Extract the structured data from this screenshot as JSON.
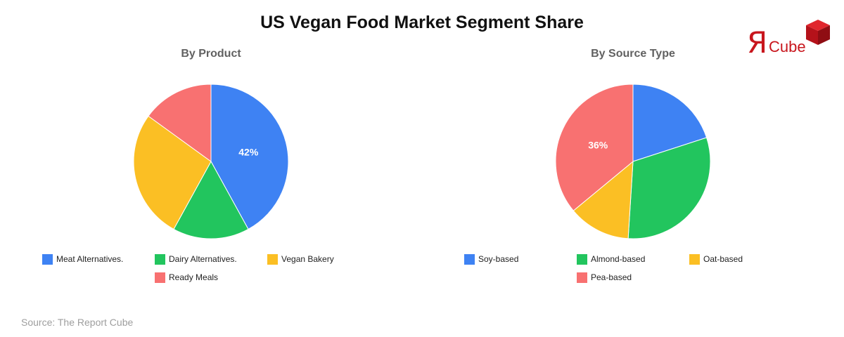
{
  "title": "US Vegan Food Market Segment Share",
  "source": "Source: The Report Cube",
  "logo": {
    "mark": "Я",
    "word": "Cube",
    "color": "#c8161d"
  },
  "chart_data": [
    {
      "type": "pie",
      "title": "By Product",
      "categories": [
        "Meat Alternatives.",
        "Dairy Alternatives.",
        "Vegan Bakery",
        "Ready Meals"
      ],
      "values": [
        42,
        16,
        27,
        15
      ],
      "colors": [
        "#3e82f3",
        "#22c55e",
        "#fbbf24",
        "#f87171"
      ],
      "data_labels": [
        "42%",
        "",
        "",
        ""
      ],
      "legend": "bottom"
    },
    {
      "type": "pie",
      "title": "By Source Type",
      "categories": [
        "Soy-based",
        "Almond-based",
        "Oat-based",
        "Pea-based"
      ],
      "values": [
        20,
        31,
        13,
        36
      ],
      "colors": [
        "#3e82f3",
        "#22c55e",
        "#fbbf24",
        "#f87171"
      ],
      "data_labels": [
        "",
        "",
        "",
        "36%"
      ],
      "legend": "bottom"
    }
  ]
}
